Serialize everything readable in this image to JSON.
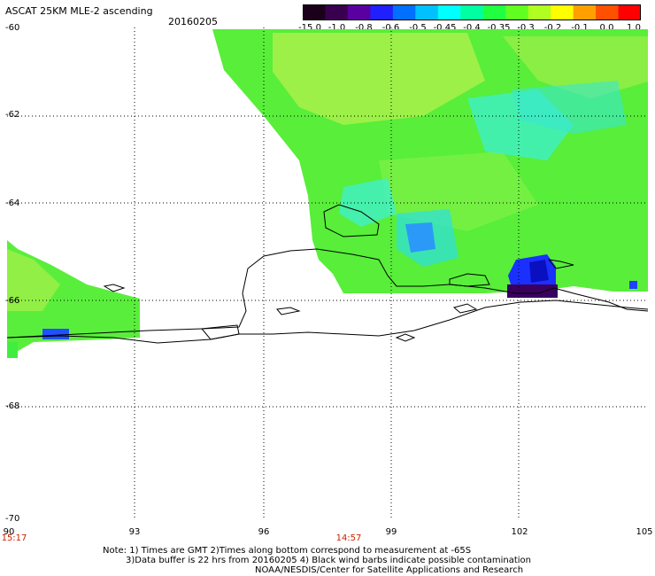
{
  "header": {
    "title": "ASCAT 25KM MLE-2 ascending",
    "date": "20160205"
  },
  "colorbar": {
    "labels": [
      "-15.0",
      "-1.0",
      "-0.8",
      "-0.6",
      "-0.5",
      "-0.45",
      "-0.4",
      "-0.35",
      "-0.3",
      "-0.2",
      "-0.1",
      "0.0",
      "1.0"
    ],
    "colors": [
      "#1a0018",
      "#3a0050",
      "#5a00a0",
      "#2020ff",
      "#0070ff",
      "#00c0ff",
      "#00ffff",
      "#00ffa0",
      "#20ff40",
      "#60ff20",
      "#b0ff20",
      "#ffff00",
      "#ffa000",
      "#ff5000",
      "#ff0000"
    ]
  },
  "axes": {
    "lat_labels": [
      "-60",
      "-62",
      "-64",
      "-66",
      "-68",
      "-70"
    ],
    "lon_labels": [
      "90",
      "93",
      "96",
      "99",
      "102",
      "105"
    ],
    "time_labels": [
      "15:17",
      "14:57"
    ]
  },
  "notes": {
    "line1": "Note: 1) Times are GMT 2)Times along bottom correspond to measurement at -65S",
    "line2": "3)Data buffer is 22 hrs from 20160205 4) Black wind barbs indicate possible contamination",
    "line3": "NOAA/NESDIS/Center for Satellite Applications and Research"
  }
}
